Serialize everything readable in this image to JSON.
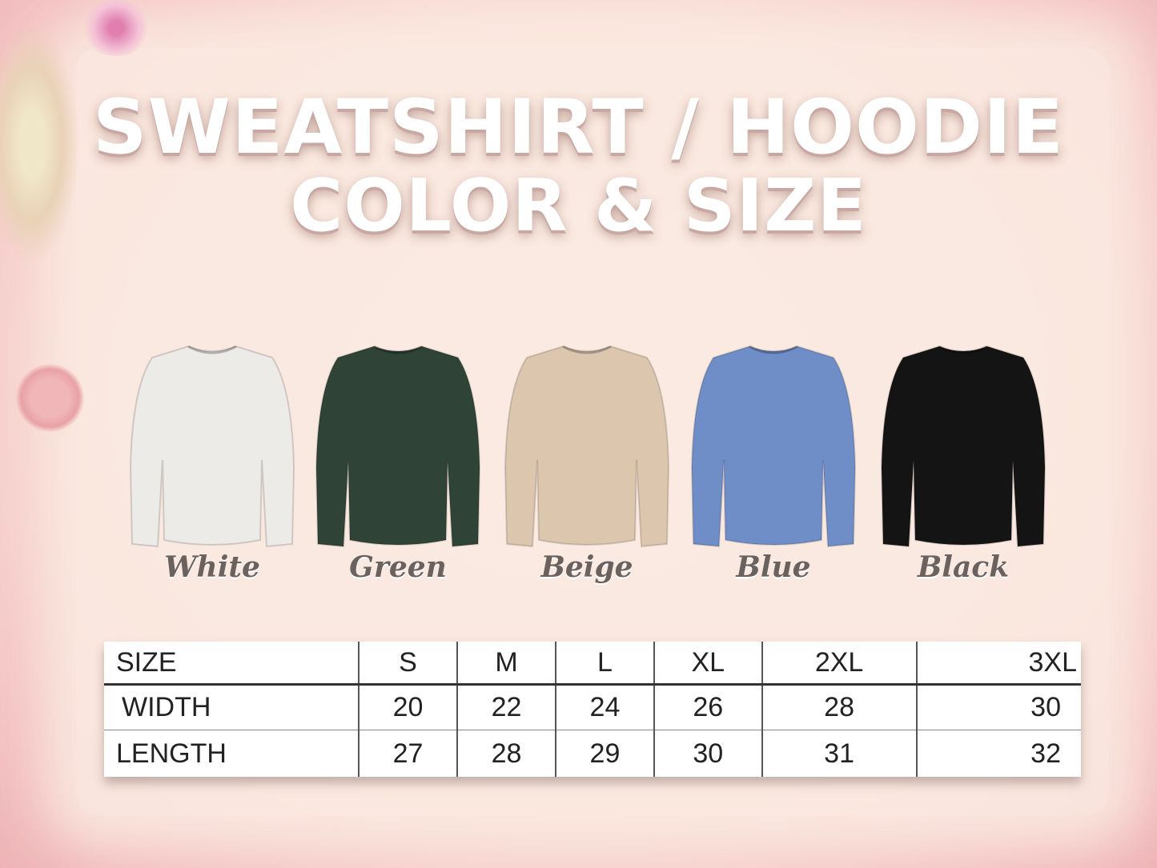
{
  "title": {
    "line1": "SWEATSHIRT / HOODIE",
    "line2": "COLOR & SIZE"
  },
  "colors": [
    {
      "name": "White",
      "hex": "#ecebe8"
    },
    {
      "name": "Green",
      "hex": "#2f4337"
    },
    {
      "name": "Beige",
      "hex": "#dcc7ae"
    },
    {
      "name": "Blue",
      "hex": "#6f8ec8"
    },
    {
      "name": "Black",
      "hex": "#141414"
    }
  ],
  "size_table": {
    "header": [
      "SIZE",
      "S",
      "M",
      "L",
      "XL",
      "2XL",
      "3XL"
    ],
    "rows": [
      [
        "WIDTH",
        "20",
        "22",
        "24",
        "26",
        "28",
        "30"
      ],
      [
        "LENGTH",
        "27",
        "28",
        "29",
        "30",
        "31",
        "32"
      ]
    ]
  }
}
